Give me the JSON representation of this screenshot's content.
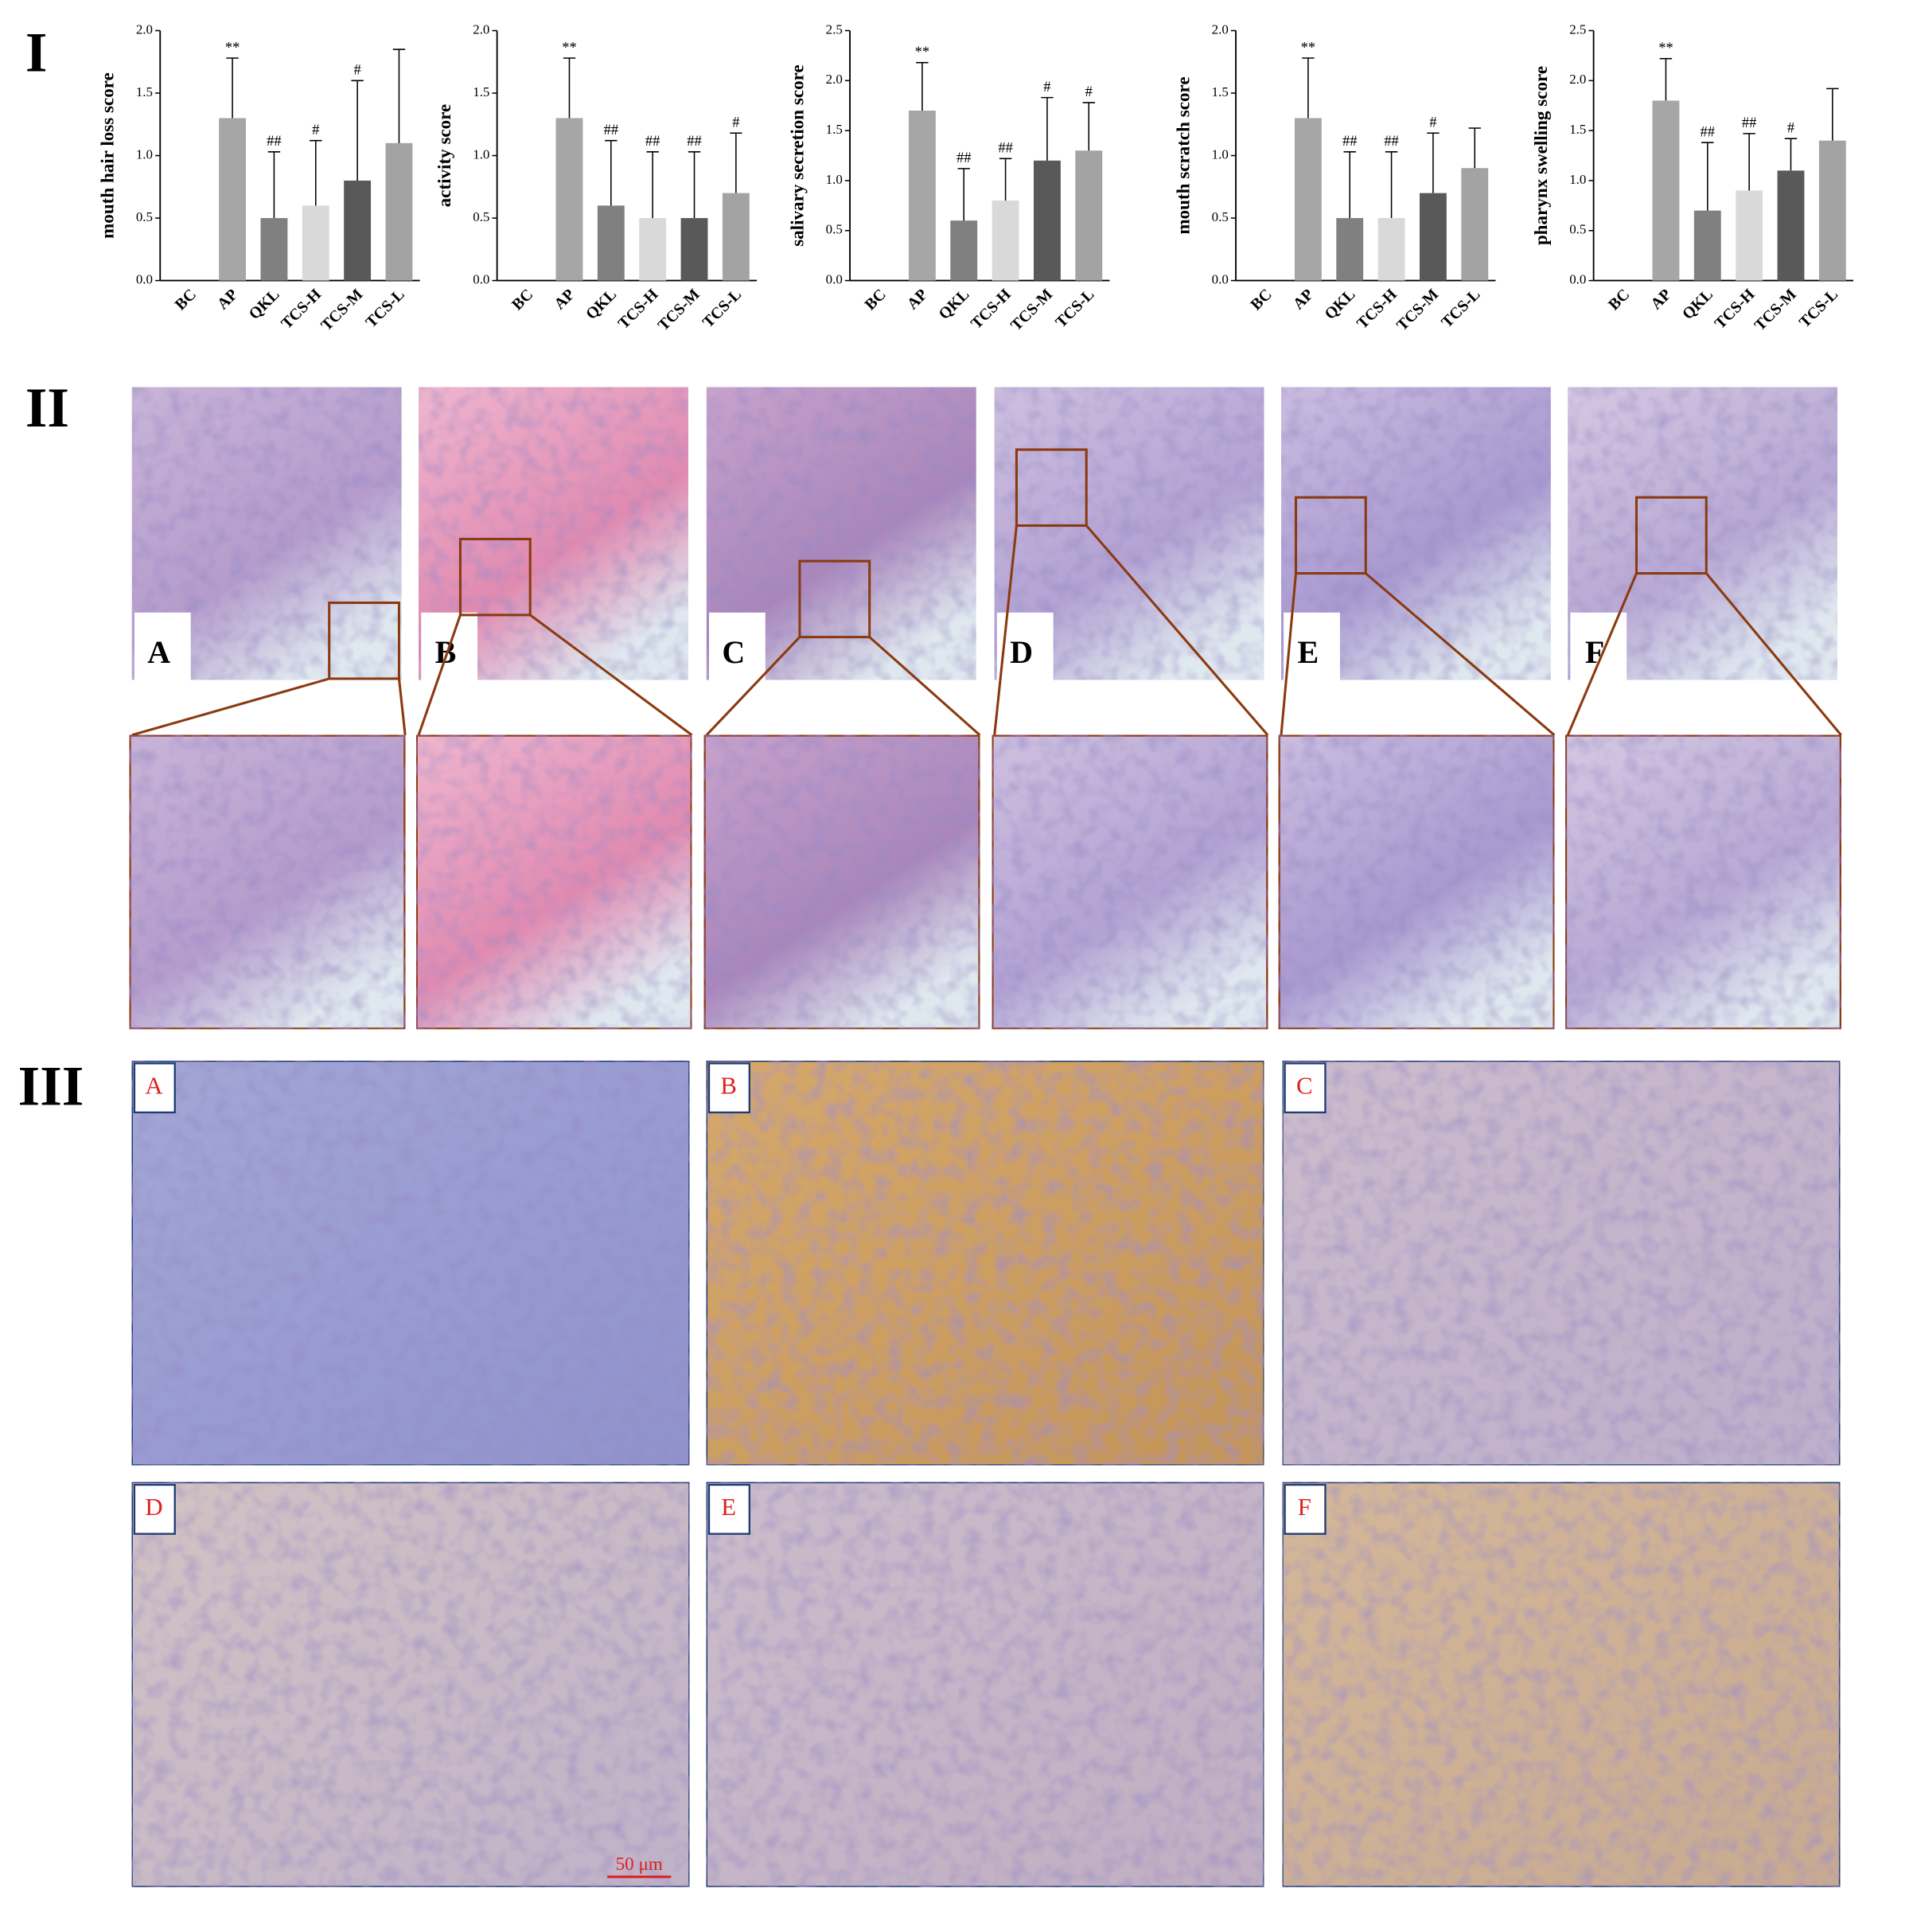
{
  "section_labels": [
    "I",
    "II",
    "III"
  ],
  "chart_data": [
    {
      "type": "bar",
      "ylabel": "mouth hair loss score",
      "categories": [
        "BC",
        "AP",
        "QKL",
        "TCS-H",
        "TCS-M",
        "TCS-L"
      ],
      "values": [
        0,
        1.3,
        0.5,
        0.6,
        0.8,
        1.1
      ],
      "errors": [
        null,
        0.48,
        0.53,
        0.52,
        0.8,
        0.75
      ],
      "annotations": [
        null,
        "**",
        "##",
        "#",
        "#",
        null
      ],
      "colors": [
        "#a6a6a6",
        "#a6a6a6",
        "#808080",
        "#d9d9d9",
        "#595959",
        "#a3a3a3"
      ],
      "ylim": [
        0,
        2
      ],
      "yticks": [
        {
          "value": 0,
          "label": "0.0"
        },
        0.5,
        {
          "value": 1,
          "label": "1.0"
        },
        1.5,
        {
          "value": 2,
          "label": "2.0"
        }
      ]
    },
    {
      "type": "bar",
      "ylabel": "activity score",
      "categories": [
        "BC",
        "AP",
        "QKL",
        "TCS-H",
        "TCS-M",
        "TCS-L"
      ],
      "values": [
        0,
        1.3,
        0.6,
        0.5,
        0.5,
        0.7
      ],
      "errors": [
        null,
        0.48,
        0.52,
        0.53,
        0.53,
        0.48
      ],
      "annotations": [
        null,
        "**",
        "##",
        "##",
        "##",
        "#"
      ],
      "colors": [
        "#a6a6a6",
        "#a6a6a6",
        "#808080",
        "#d9d9d9",
        "#595959",
        "#a3a3a3"
      ],
      "ylim": [
        0,
        2
      ],
      "yticks": [
        {
          "value": 0,
          "label": "0.0"
        },
        0.5,
        {
          "value": 1,
          "label": "1.0"
        },
        1.5,
        {
          "value": 2,
          "label": "2.0"
        }
      ]
    },
    {
      "type": "bar",
      "ylabel": "salivary secretion score",
      "categories": [
        "BC",
        "AP",
        "QKL",
        "TCS-H",
        "TCS-M",
        "TCS-L"
      ],
      "values": [
        0,
        1.7,
        0.6,
        0.8,
        1.2,
        1.3
      ],
      "errors": [
        null,
        0.48,
        0.52,
        0.42,
        0.63,
        0.48
      ],
      "annotations": [
        null,
        "**",
        "##",
        "##",
        "#",
        "#"
      ],
      "colors": [
        "#a6a6a6",
        "#a6a6a6",
        "#808080",
        "#d9d9d9",
        "#595959",
        "#a3a3a3"
      ],
      "ylim": [
        0,
        2.5
      ],
      "yticks": [
        {
          "value": 0,
          "label": "0.0"
        },
        0.5,
        {
          "value": 1,
          "label": "1.0"
        },
        1.5,
        {
          "value": 2,
          "label": "2.0"
        },
        2.5
      ]
    },
    {
      "type": "bar",
      "ylabel": "mouth scratch score",
      "categories": [
        "BC",
        "AP",
        "QKL",
        "TCS-H",
        "TCS-M",
        "TCS-L"
      ],
      "values": [
        0,
        1.3,
        0.5,
        0.5,
        0.7,
        0.9
      ],
      "errors": [
        null,
        0.48,
        0.53,
        0.53,
        0.48,
        0.32
      ],
      "annotations": [
        null,
        "**",
        "##",
        "##",
        "#",
        null
      ],
      "colors": [
        "#a6a6a6",
        "#a6a6a6",
        "#808080",
        "#d9d9d9",
        "#595959",
        "#a3a3a3"
      ],
      "ylim": [
        0,
        2
      ],
      "yticks": [
        {
          "value": 0,
          "label": "0.0"
        },
        0.5,
        {
          "value": 1,
          "label": "1.0"
        },
        1.5,
        {
          "value": 2,
          "label": "2.0"
        }
      ]
    },
    {
      "type": "bar",
      "ylabel": "pharynx swelling score",
      "categories": [
        "BC",
        "AP",
        "QKL",
        "TCS-H",
        "TCS-M",
        "TCS-L"
      ],
      "values": [
        0,
        1.8,
        0.7,
        0.9,
        1.1,
        1.4
      ],
      "errors": [
        null,
        0.42,
        0.68,
        0.57,
        0.32,
        0.52
      ],
      "annotations": [
        null,
        "**",
        "##",
        "##",
        "#",
        null
      ],
      "colors": [
        "#a6a6a6",
        "#a6a6a6",
        "#808080",
        "#d9d9d9",
        "#595959",
        "#a3a3a3"
      ],
      "ylim": [
        0,
        2.5
      ],
      "yticks": [
        {
          "value": 0,
          "label": "0.0"
        },
        0.5,
        {
          "value": 1,
          "label": "1.0"
        },
        1.5,
        {
          "value": 2,
          "label": "2.0"
        },
        2.5
      ]
    }
  ],
  "histology": {
    "labels": [
      "A",
      "B",
      "C",
      "D",
      "E",
      "F"
    ]
  },
  "ihc": {
    "labels": [
      "A",
      "B",
      "C",
      "D",
      "E",
      "F"
    ],
    "scale_bar": "50 μm"
  }
}
